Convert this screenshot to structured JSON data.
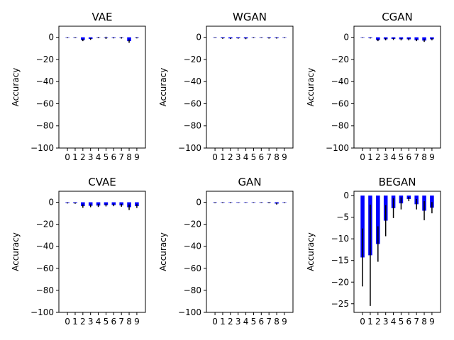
{
  "figure": {
    "background": "#ffffff"
  },
  "chart_data": [
    {
      "type": "bar",
      "title": "VAE",
      "ylabel": "Accuracy",
      "xlabel": "",
      "categories": [
        "0",
        "1",
        "2",
        "3",
        "4",
        "5",
        "6",
        "7",
        "8",
        "9"
      ],
      "values": [
        -0.3,
        -0.3,
        -2.5,
        -1.5,
        -0.3,
        -0.5,
        -0.5,
        -0.5,
        -3.5,
        -0.5
      ],
      "errors": [
        0.4,
        0.4,
        1.0,
        0.8,
        0.5,
        1.0,
        0.5,
        0.7,
        1.5,
        0.5
      ],
      "ylim": [
        -100,
        10
      ],
      "yticks": [
        0,
        -20,
        -40,
        -60,
        -80,
        -100
      ],
      "bar_color": "#0000ff",
      "error_color": "#000000",
      "grid": false,
      "legend": "none"
    },
    {
      "type": "bar",
      "title": "WGAN",
      "ylabel": "Accuracy",
      "xlabel": "",
      "categories": [
        "0",
        "1",
        "2",
        "3",
        "4",
        "5",
        "6",
        "7",
        "8",
        "9"
      ],
      "values": [
        -0.2,
        -0.8,
        -1.0,
        -0.8,
        -1.0,
        -0.3,
        -0.2,
        -0.6,
        -0.6,
        -0.3
      ],
      "errors": [
        0.3,
        0.6,
        0.6,
        0.5,
        0.7,
        0.4,
        0.3,
        0.6,
        0.6,
        0.4
      ],
      "ylim": [
        -100,
        10
      ],
      "yticks": [
        0,
        -20,
        -40,
        -60,
        -80,
        -100
      ],
      "bar_color": "#0000ff",
      "error_color": "#000000",
      "grid": false,
      "legend": "none"
    },
    {
      "type": "bar",
      "title": "CGAN",
      "ylabel": "Accuracy",
      "xlabel": "",
      "categories": [
        "0",
        "1",
        "2",
        "3",
        "4",
        "5",
        "6",
        "7",
        "8",
        "9"
      ],
      "values": [
        -0.2,
        -0.6,
        -2.5,
        -1.8,
        -1.5,
        -1.8,
        -1.8,
        -2.5,
        -3.0,
        -1.8
      ],
      "errors": [
        0.3,
        0.5,
        1.0,
        0.9,
        0.9,
        1.0,
        1.0,
        1.0,
        1.2,
        0.9
      ],
      "ylim": [
        -100,
        10
      ],
      "yticks": [
        0,
        -20,
        -40,
        -60,
        -80,
        -100
      ],
      "bar_color": "#0000ff",
      "error_color": "#000000",
      "grid": false,
      "legend": "none"
    },
    {
      "type": "bar",
      "title": "CVAE",
      "ylabel": "Accuracy",
      "xlabel": "",
      "categories": [
        "0",
        "1",
        "2",
        "3",
        "4",
        "5",
        "6",
        "7",
        "8",
        "9"
      ],
      "values": [
        -0.6,
        -0.8,
        -3.5,
        -3.2,
        -3.0,
        -2.6,
        -2.5,
        -2.8,
        -4.5,
        -3.5
      ],
      "errors": [
        0.5,
        0.6,
        1.5,
        1.3,
        1.3,
        1.2,
        1.1,
        1.3,
        2.5,
        1.7
      ],
      "ylim": [
        -100,
        10
      ],
      "yticks": [
        0,
        -20,
        -40,
        -60,
        -80,
        -100
      ],
      "bar_color": "#0000ff",
      "error_color": "#000000",
      "grid": false,
      "legend": "none"
    },
    {
      "type": "bar",
      "title": "GAN",
      "ylabel": "Accuracy",
      "xlabel": "",
      "categories": [
        "0",
        "1",
        "2",
        "3",
        "4",
        "5",
        "6",
        "7",
        "8",
        "9"
      ],
      "values": [
        -0.4,
        -0.3,
        -0.3,
        -0.3,
        -0.2,
        -0.2,
        -0.2,
        -0.4,
        -1.2,
        -0.3
      ],
      "errors": [
        0.4,
        0.4,
        0.4,
        0.3,
        0.3,
        0.3,
        0.3,
        0.5,
        0.9,
        0.4
      ],
      "ylim": [
        -100,
        10
      ],
      "yticks": [
        0,
        -20,
        -40,
        -60,
        -80,
        -100
      ],
      "bar_color": "#0000ff",
      "error_color": "#000000",
      "grid": false,
      "legend": "none"
    },
    {
      "type": "bar",
      "title": "BEGAN",
      "ylabel": "Accuracy",
      "xlabel": "",
      "categories": [
        "0",
        "1",
        "2",
        "3",
        "4",
        "5",
        "6",
        "7",
        "8",
        "9"
      ],
      "values": [
        -14.3,
        -13.8,
        -11.2,
        -5.8,
        -2.9,
        -1.8,
        -0.8,
        -2.0,
        -3.5,
        -2.8
      ],
      "errors": [
        6.7,
        11.7,
        4.1,
        3.6,
        2.3,
        1.4,
        0.5,
        1.2,
        2.2,
        1.3
      ],
      "ylim": [
        -27,
        1
      ],
      "yticks": [
        0,
        -5,
        -10,
        -15,
        -20,
        -25
      ],
      "bar_color": "#0000ff",
      "error_color": "#000000",
      "grid": false,
      "legend": "none"
    }
  ]
}
